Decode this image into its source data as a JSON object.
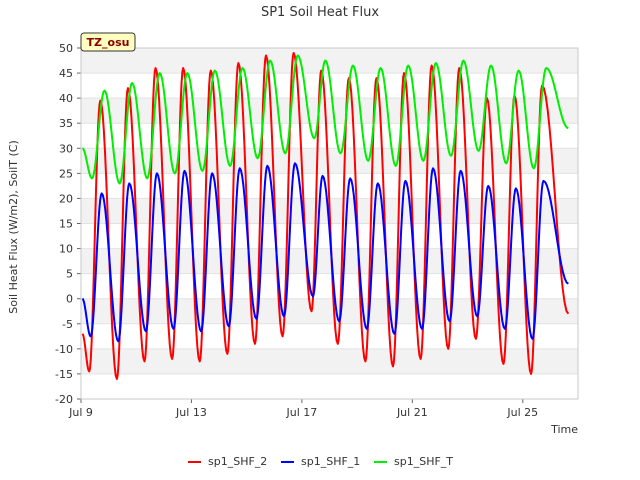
{
  "chart_data": {
    "type": "line",
    "title": "SP1 Soil Heat Flux",
    "xlabel": "Time",
    "ylabel": "Soil Heat Flux (W/m2), SoilT (C)",
    "badge": "TZ_osu",
    "ylim": [
      -20,
      50
    ],
    "yticks": [
      -20,
      -15,
      -10,
      -5,
      0,
      5,
      10,
      15,
      20,
      25,
      30,
      35,
      40,
      45,
      50
    ],
    "xlim": [
      9.0,
      27.0
    ],
    "xticks": [
      {
        "value": 9,
        "label": "Jul 9"
      },
      {
        "value": 13,
        "label": "Jul 13"
      },
      {
        "value": 17,
        "label": "Jul 17"
      },
      {
        "value": 21,
        "label": "Jul 21"
      },
      {
        "value": 25,
        "label": "Jul 25"
      }
    ],
    "grid": true,
    "legend_position": "bottom",
    "series": [
      {
        "name": "sp1_SHF_2",
        "color": "#ff0000",
        "start": {
          "day": 9.05,
          "value": -7
        },
        "end": {
          "day": 26.65,
          "value": -3
        },
        "extrema": [
          {
            "day": 9.3,
            "value": -14.5
          },
          {
            "day": 9.7,
            "value": 39.5
          },
          {
            "day": 10.3,
            "value": -16
          },
          {
            "day": 10.7,
            "value": 42
          },
          {
            "day": 11.3,
            "value": -12.5
          },
          {
            "day": 11.7,
            "value": 46
          },
          {
            "day": 12.3,
            "value": -12
          },
          {
            "day": 12.7,
            "value": 46
          },
          {
            "day": 13.3,
            "value": -12.5
          },
          {
            "day": 13.7,
            "value": 45.5
          },
          {
            "day": 14.3,
            "value": -11
          },
          {
            "day": 14.7,
            "value": 47
          },
          {
            "day": 15.3,
            "value": -9
          },
          {
            "day": 15.7,
            "value": 48.5
          },
          {
            "day": 16.3,
            "value": -7.5
          },
          {
            "day": 16.7,
            "value": 49
          },
          {
            "day": 17.35,
            "value": -2.5
          },
          {
            "day": 17.7,
            "value": 45.5
          },
          {
            "day": 18.3,
            "value": -9
          },
          {
            "day": 18.7,
            "value": 44
          },
          {
            "day": 19.3,
            "value": -12.5
          },
          {
            "day": 19.7,
            "value": 44
          },
          {
            "day": 20.3,
            "value": -13.5
          },
          {
            "day": 20.7,
            "value": 45
          },
          {
            "day": 21.3,
            "value": -12
          },
          {
            "day": 21.7,
            "value": 46.5
          },
          {
            "day": 22.3,
            "value": -10
          },
          {
            "day": 22.7,
            "value": 46
          },
          {
            "day": 23.3,
            "value": -8
          },
          {
            "day": 23.7,
            "value": 40
          },
          {
            "day": 24.3,
            "value": -13
          },
          {
            "day": 24.7,
            "value": 40.5
          },
          {
            "day": 25.3,
            "value": -15
          },
          {
            "day": 25.7,
            "value": 42.5
          }
        ]
      },
      {
        "name": "sp1_SHF_1",
        "color": "#0000ff",
        "start": {
          "day": 9.05,
          "value": 0
        },
        "end": {
          "day": 26.65,
          "value": 3
        },
        "extrema": [
          {
            "day": 9.35,
            "value": -7.5
          },
          {
            "day": 9.75,
            "value": 21
          },
          {
            "day": 10.35,
            "value": -8.5
          },
          {
            "day": 10.75,
            "value": 23
          },
          {
            "day": 11.35,
            "value": -6.5
          },
          {
            "day": 11.75,
            "value": 25
          },
          {
            "day": 12.35,
            "value": -6
          },
          {
            "day": 12.75,
            "value": 25.5
          },
          {
            "day": 13.35,
            "value": -6.5
          },
          {
            "day": 13.75,
            "value": 25
          },
          {
            "day": 14.35,
            "value": -5.5
          },
          {
            "day": 14.75,
            "value": 26
          },
          {
            "day": 15.35,
            "value": -4
          },
          {
            "day": 15.75,
            "value": 26.5
          },
          {
            "day": 16.35,
            "value": -3.5
          },
          {
            "day": 16.75,
            "value": 27
          },
          {
            "day": 17.4,
            "value": 0.5
          },
          {
            "day": 17.75,
            "value": 24.5
          },
          {
            "day": 18.35,
            "value": -4.5
          },
          {
            "day": 18.75,
            "value": 24
          },
          {
            "day": 19.35,
            "value": -6
          },
          {
            "day": 19.75,
            "value": 23
          },
          {
            "day": 20.35,
            "value": -7
          },
          {
            "day": 20.75,
            "value": 23.5
          },
          {
            "day": 21.35,
            "value": -6
          },
          {
            "day": 21.75,
            "value": 26
          },
          {
            "day": 22.35,
            "value": -4.5
          },
          {
            "day": 22.75,
            "value": 25.5
          },
          {
            "day": 23.35,
            "value": -3.5
          },
          {
            "day": 23.75,
            "value": 22.5
          },
          {
            "day": 24.35,
            "value": -6
          },
          {
            "day": 24.75,
            "value": 22
          },
          {
            "day": 25.35,
            "value": -8
          },
          {
            "day": 25.75,
            "value": 23.5
          }
        ]
      },
      {
        "name": "sp1_SHF_T",
        "color": "#00ee00",
        "start": {
          "day": 9.05,
          "value": 30
        },
        "end": {
          "day": 26.65,
          "value": 34
        },
        "extrema": [
          {
            "day": 9.4,
            "value": 24
          },
          {
            "day": 9.85,
            "value": 41.5
          },
          {
            "day": 10.4,
            "value": 23
          },
          {
            "day": 10.85,
            "value": 43
          },
          {
            "day": 11.4,
            "value": 24
          },
          {
            "day": 11.85,
            "value": 45
          },
          {
            "day": 12.4,
            "value": 25
          },
          {
            "day": 12.85,
            "value": 45
          },
          {
            "day": 13.4,
            "value": 25.5
          },
          {
            "day": 13.85,
            "value": 45.5
          },
          {
            "day": 14.4,
            "value": 26.5
          },
          {
            "day": 14.85,
            "value": 46
          },
          {
            "day": 15.4,
            "value": 28
          },
          {
            "day": 15.85,
            "value": 47.5
          },
          {
            "day": 16.4,
            "value": 29
          },
          {
            "day": 16.85,
            "value": 48.5
          },
          {
            "day": 17.45,
            "value": 32
          },
          {
            "day": 17.85,
            "value": 47.5
          },
          {
            "day": 18.4,
            "value": 29
          },
          {
            "day": 18.85,
            "value": 46.5
          },
          {
            "day": 19.4,
            "value": 27.5
          },
          {
            "day": 19.85,
            "value": 46
          },
          {
            "day": 20.4,
            "value": 26.5
          },
          {
            "day": 20.85,
            "value": 46.5
          },
          {
            "day": 21.4,
            "value": 27.5
          },
          {
            "day": 21.85,
            "value": 47
          },
          {
            "day": 22.4,
            "value": 28.5
          },
          {
            "day": 22.85,
            "value": 47.5
          },
          {
            "day": 23.4,
            "value": 29.5
          },
          {
            "day": 23.85,
            "value": 46.5
          },
          {
            "day": 24.4,
            "value": 27
          },
          {
            "day": 24.85,
            "value": 45.5
          },
          {
            "day": 25.4,
            "value": 26
          },
          {
            "day": 25.85,
            "value": 46
          }
        ]
      }
    ]
  }
}
